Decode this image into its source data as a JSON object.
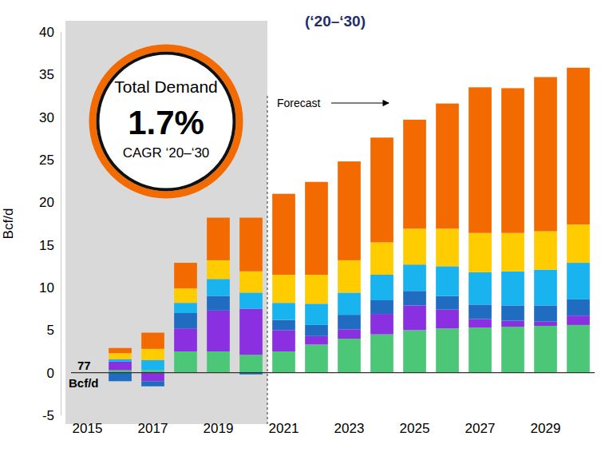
{
  "chart_data": {
    "type": "bar",
    "stacked": true,
    "title": "(‘20–‘30)",
    "y_label": "Bcf/d",
    "annotations": [
      "Total Demand",
      "1.7%",
      "CAGR ‘20–‘30",
      "Forecast",
      "77",
      "Bcf/d"
    ],
    "categories": [
      "2015",
      null,
      "2017",
      null,
      "2019",
      null,
      "2021",
      null,
      "2023",
      null,
      "2025",
      null,
      "2027",
      null,
      "2029",
      null
    ],
    "series": [
      {
        "color": "#4cc777",
        "values": [
          null,
          0.3,
          0.3,
          2.5,
          2.5,
          2.1,
          2.5,
          3.3,
          4.0,
          4.5,
          5.0,
          5.2,
          5.3,
          5.4,
          5.5,
          5.6
        ]
      },
      {
        "color": "#8a30e0",
        "values": [
          null,
          1.0,
          -1.0,
          2.7,
          4.8,
          5.4,
          2.5,
          1.0,
          1.1,
          2.4,
          2.9,
          2.2,
          1.0,
          0.7,
          0.5,
          1.1
        ]
      },
      {
        "color": "#1f6cc0",
        "values": [
          null,
          -1.0,
          -0.6,
          1.8,
          1.7,
          -0.2,
          1.2,
          1.3,
          1.7,
          1.6,
          1.7,
          1.6,
          1.7,
          1.8,
          1.9,
          1.9
        ]
      },
      {
        "color": "#19b4f0",
        "values": [
          null,
          0.3,
          1.2,
          1.2,
          2.0,
          1.9,
          2.0,
          2.5,
          2.6,
          3.0,
          3.1,
          3.5,
          3.8,
          4.0,
          4.2,
          4.3
        ]
      },
      {
        "color": "#ffcc00",
        "values": [
          null,
          0.7,
          1.3,
          1.7,
          2.2,
          2.5,
          3.3,
          3.4,
          3.8,
          3.8,
          4.2,
          4.4,
          4.6,
          4.5,
          4.5,
          4.5
        ]
      },
      {
        "color": "#f26a00",
        "values": [
          null,
          0.6,
          1.9,
          3.0,
          5.0,
          6.3,
          9.5,
          10.9,
          11.6,
          12.3,
          12.8,
          14.7,
          17.1,
          17.0,
          18.1,
          18.4
        ]
      }
    ],
    "ylim": [
      -5,
      40
    ],
    "yticks": [
      -5,
      0,
      5,
      10,
      15,
      20,
      25,
      30,
      35,
      40
    ]
  }
}
